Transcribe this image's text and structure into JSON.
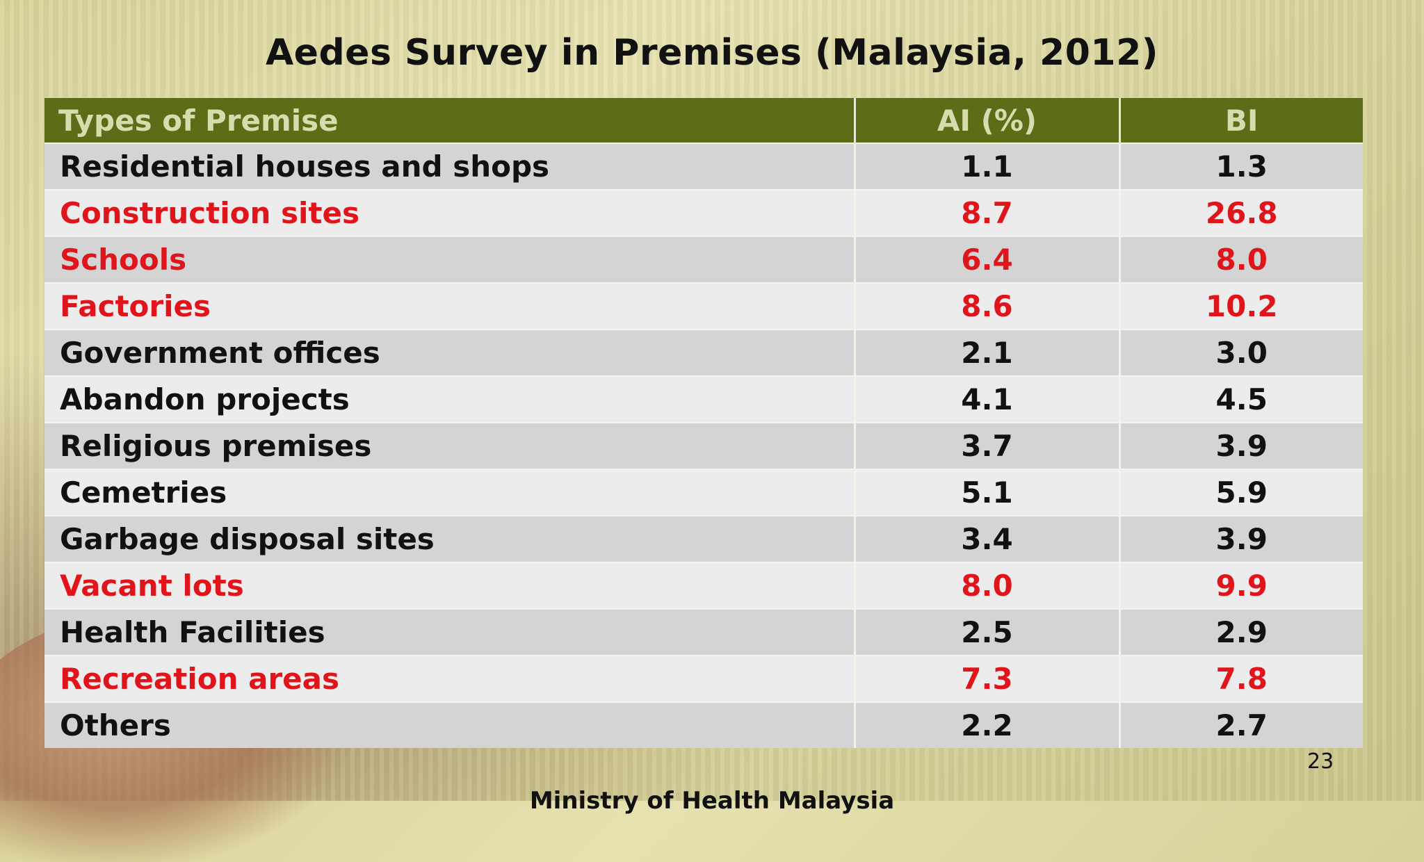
{
  "slide": {
    "title": "Aedes Survey in Premises (Malaysia, 2012)",
    "page_number": "23",
    "footer": "Ministry of Health Malaysia"
  },
  "table": {
    "headers": [
      "Types of Premise",
      "AI (%)",
      "BI"
    ],
    "rows": [
      {
        "premise": "Residential houses and shops",
        "ai": "1.1",
        "bi": "1.3",
        "highlight": false
      },
      {
        "premise": "Construction sites",
        "ai": "8.7",
        "bi": "26.8",
        "highlight": true
      },
      {
        "premise": "Schools",
        "ai": "6.4",
        "bi": "8.0",
        "highlight": true
      },
      {
        "premise": "Factories",
        "ai": "8.6",
        "bi": "10.2",
        "highlight": true
      },
      {
        "premise": "Government offices",
        "ai": "2.1",
        "bi": "3.0",
        "highlight": false
      },
      {
        "premise": "Abandon projects",
        "ai": "4.1",
        "bi": "4.5",
        "highlight": false
      },
      {
        "premise": "Religious premises",
        "ai": "3.7",
        "bi": "3.9",
        "highlight": false
      },
      {
        "premise": "Cemetries",
        "ai": "5.1",
        "bi": "5.9",
        "highlight": false
      },
      {
        "premise": "Garbage disposal sites",
        "ai": "3.4",
        "bi": "3.9",
        "highlight": false
      },
      {
        "premise": "Vacant lots",
        "ai": "8.0",
        "bi": "9.9",
        "highlight": true
      },
      {
        "premise": "Health Facilities",
        "ai": "2.5",
        "bi": "2.9",
        "highlight": false
      },
      {
        "premise": "Recreation areas",
        "ai": "7.3",
        "bi": "7.8",
        "highlight": true
      },
      {
        "premise": "Others",
        "ai": "2.2",
        "bi": "2.7",
        "highlight": false
      }
    ]
  },
  "colors": {
    "header_bg": "#5b6d17",
    "highlight_text": "#e0141b"
  }
}
